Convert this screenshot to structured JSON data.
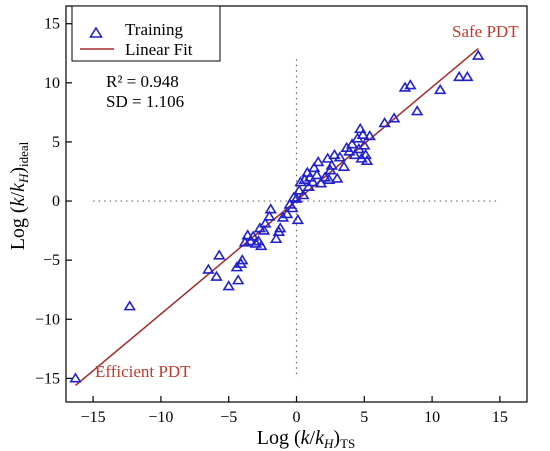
{
  "chart_data": {
    "type": "scatter",
    "xlabel": {
      "prefix": "Log (",
      "k": "k",
      "slash": "/",
      "kH": "k",
      "H": "H",
      "close": ")",
      "sub": "TS"
    },
    "ylabel": {
      "prefix": "Log (",
      "k": "k",
      "slash": "/",
      "kH": "k",
      "H": "H",
      "close": ")",
      "sub": "ideal"
    },
    "xlim": [
      -17,
      17
    ],
    "ylim": [
      -17,
      16.5
    ],
    "xticks": [
      -15,
      -10,
      -5,
      0,
      5,
      10,
      15
    ],
    "yticks": [
      -15,
      -10,
      -5,
      0,
      5,
      10,
      15
    ],
    "grid": false,
    "reference_lines": {
      "x": 0,
      "y": 0,
      "style": "dotted"
    },
    "legend": {
      "position": "top-left",
      "entries": [
        {
          "label": "Training",
          "marker": "triangle-open",
          "color": "#2222cc"
        },
        {
          "label": "Linear Fit",
          "marker": "line",
          "color": "#a52a2a"
        }
      ]
    },
    "stats": {
      "r2": "R² = 0.948",
      "sd": "SD = 1.106"
    },
    "annotations": {
      "top_right": {
        "text": "Safe PDT",
        "color": "#c0392b"
      },
      "bottom_left": {
        "text": "Efficient PDT",
        "color": "#c0392b"
      }
    },
    "series": [
      {
        "name": "Training",
        "color": "#2222cc",
        "marker": "triangle-open",
        "points": [
          [
            -16.3,
            -15.0
          ],
          [
            -12.3,
            -8.9
          ],
          [
            -6.5,
            -5.8
          ],
          [
            -5.9,
            -6.4
          ],
          [
            -5.7,
            -4.6
          ],
          [
            -5.0,
            -7.2
          ],
          [
            -4.4,
            -5.6
          ],
          [
            -4.3,
            -6.7
          ],
          [
            -4.1,
            -5.3
          ],
          [
            -4.0,
            -5.0
          ],
          [
            -3.8,
            -3.5
          ],
          [
            -3.6,
            -2.9
          ],
          [
            -3.4,
            -3.4
          ],
          [
            -3.2,
            -3.0
          ],
          [
            -3.0,
            -3.6
          ],
          [
            -2.8,
            -3.4
          ],
          [
            -2.6,
            -3.8
          ],
          [
            -2.7,
            -2.3
          ],
          [
            -2.4,
            -2.5
          ],
          [
            -2.3,
            -1.9
          ],
          [
            -2.0,
            -1.3
          ],
          [
            -1.9,
            -0.7
          ],
          [
            -1.5,
            -3.2
          ],
          [
            -1.3,
            -2.6
          ],
          [
            -1.2,
            -2.3
          ],
          [
            -1.0,
            -1.4
          ],
          [
            -0.7,
            -1.1
          ],
          [
            -0.5,
            -0.3
          ],
          [
            -0.3,
            -0.6
          ],
          [
            -0.2,
            0.3
          ],
          [
            0.0,
            0.2
          ],
          [
            0.1,
            -1.6
          ],
          [
            0.2,
            0.9
          ],
          [
            0.3,
            1.6
          ],
          [
            0.5,
            0.5
          ],
          [
            0.6,
            1.8
          ],
          [
            0.8,
            2.4
          ],
          [
            0.9,
            1.2
          ],
          [
            1.0,
            2.0
          ],
          [
            1.2,
            1.6
          ],
          [
            1.3,
            2.8
          ],
          [
            1.5,
            2.2
          ],
          [
            1.6,
            3.3
          ],
          [
            1.8,
            1.5
          ],
          [
            2.1,
            2.0
          ],
          [
            2.3,
            3.6
          ],
          [
            2.4,
            1.8
          ],
          [
            2.5,
            2.6
          ],
          [
            2.6,
            3.0
          ],
          [
            2.8,
            3.9
          ],
          [
            3.0,
            1.9
          ],
          [
            3.2,
            3.7
          ],
          [
            3.5,
            2.9
          ],
          [
            3.7,
            4.5
          ],
          [
            3.9,
            4.2
          ],
          [
            4.1,
            4.8
          ],
          [
            4.3,
            3.9
          ],
          [
            4.5,
            5.3
          ],
          [
            4.6,
            4.4
          ],
          [
            4.7,
            6.1
          ],
          [
            4.8,
            3.6
          ],
          [
            4.9,
            5.6
          ],
          [
            5.0,
            4.7
          ],
          [
            5.1,
            3.9
          ],
          [
            5.2,
            3.4
          ],
          [
            5.4,
            5.5
          ],
          [
            6.5,
            6.6
          ],
          [
            7.2,
            7.0
          ],
          [
            8.0,
            9.6
          ],
          [
            8.4,
            9.8
          ],
          [
            8.9,
            7.6
          ],
          [
            10.6,
            9.4
          ],
          [
            12.0,
            10.5
          ],
          [
            12.6,
            10.5
          ],
          [
            13.4,
            12.3
          ]
        ]
      },
      {
        "name": "Linear Fit",
        "color": "#a52a2a",
        "line": {
          "x": [
            -16.3,
            13.4
          ],
          "y": [
            -15.6,
            12.9
          ]
        }
      }
    ]
  }
}
